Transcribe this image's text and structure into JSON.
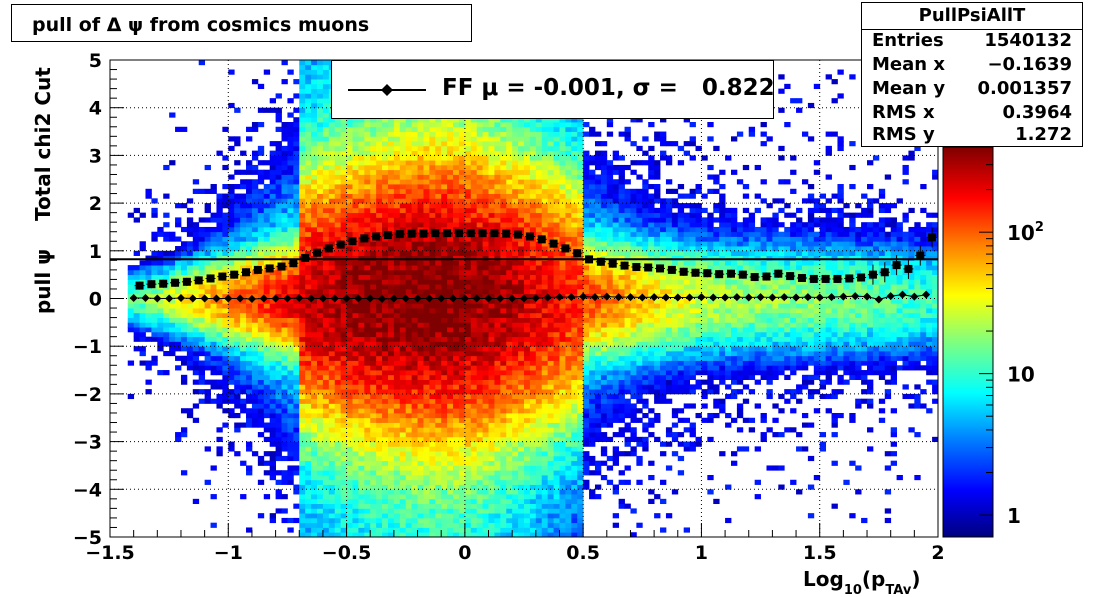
{
  "title": "pull of Δ ψ from cosmics muons",
  "stats": {
    "name": "PullPsiAllT",
    "rows": [
      {
        "label": "Entries",
        "value": "1540132"
      },
      {
        "label": "Mean x",
        "value": "−0.1639"
      },
      {
        "label": "Mean y",
        "value": "0.001357"
      },
      {
        "label": "RMS x",
        "value": "0.3964"
      },
      {
        "label": "RMS y",
        "value": "1.272"
      }
    ]
  },
  "legend": {
    "text": "FF μ = -0.001, σ =   0.822"
  },
  "colors": {
    "palette": [
      "#00007f",
      "#0000ff",
      "#007fff",
      "#00ffff",
      "#7fff7f",
      "#ffff00",
      "#ff7f00",
      "#ff0000",
      "#7f0000"
    ],
    "marker": "#000000"
  },
  "chart_data": {
    "type": "heatmap",
    "title": "pull of Δ ψ from cosmics muons",
    "xlabel": "Log",
    "xlabel_sub": "10",
    "xlabel_paren_open": "(p",
    "xlabel_sub2": "TAv",
    "xlabel_paren_close": ")",
    "ylabel": "pull ψ    Total chi2 Cut",
    "xlim": [
      -1.5,
      2
    ],
    "ylim": [
      -5,
      5
    ],
    "xticks": [
      "−1.5",
      "−1",
      "−0.5",
      "0",
      "0.5",
      "1",
      "1.5",
      "2"
    ],
    "xtick_values": [
      -1.5,
      -1,
      -0.5,
      0,
      0.5,
      1,
      1.5,
      2
    ],
    "yticks": [
      "−5",
      "−4",
      "−3",
      "−2",
      "−1",
      "0",
      "1",
      "2",
      "3",
      "4",
      "5"
    ],
    "ytick_values": [
      -5,
      -4,
      -3,
      -2,
      -1,
      0,
      1,
      2,
      3,
      4,
      5
    ],
    "grid": true,
    "z_log": true,
    "zlim": [
      0.7,
      400
    ],
    "z_ticks": [
      {
        "value": 1,
        "label": "1"
      },
      {
        "value": 10,
        "label": "10"
      },
      {
        "value": 100,
        "label": "10",
        "sup": "2"
      }
    ],
    "fit_line": {
      "name": "FF",
      "y": 0.822
    },
    "mean_profile": {
      "x": [
        -1.4,
        -1.35,
        -1.3,
        -1.25,
        -1.2,
        -1.15,
        -1.1,
        -1.05,
        -1.0,
        -0.95,
        -0.9,
        -0.85,
        -0.8,
        -0.75,
        -0.7,
        -0.65,
        -0.6,
        -0.55,
        -0.5,
        -0.45,
        -0.4,
        -0.35,
        -0.3,
        -0.25,
        -0.2,
        -0.15,
        -0.1,
        -0.05,
        0.0,
        0.05,
        0.1,
        0.15,
        0.2,
        0.25,
        0.3,
        0.35,
        0.4,
        0.45,
        0.5,
        0.55,
        0.6,
        0.65,
        0.7,
        0.75,
        0.8,
        0.85,
        0.9,
        0.95,
        1.0,
        1.05,
        1.1,
        1.15,
        1.2,
        1.25,
        1.3,
        1.35,
        1.4,
        1.45,
        1.5,
        1.55,
        1.6,
        1.65,
        1.7,
        1.75,
        1.8,
        1.85,
        1.9,
        1.95
      ],
      "y": [
        0.01,
        0.01,
        0.0,
        0.0,
        0.01,
        0.0,
        0.0,
        0.0,
        0.0,
        0.0,
        -0.01,
        0.0,
        0.0,
        0.0,
        0.01,
        0.0,
        0.0,
        0.0,
        0.0,
        0.0,
        0.0,
        -0.01,
        0.0,
        0.0,
        0.0,
        0.0,
        0.0,
        0.0,
        0.0,
        0.0,
        0.0,
        0.0,
        0.0,
        0.0,
        0.01,
        0.02,
        0.03,
        0.03,
        0.04,
        0.03,
        0.04,
        0.03,
        0.03,
        0.02,
        0.03,
        0.02,
        0.02,
        0.02,
        0.03,
        0.02,
        0.02,
        0.03,
        0.02,
        0.03,
        0.02,
        0.03,
        0.02,
        0.03,
        0.02,
        0.03,
        0.04,
        0.05,
        0.04,
        -0.02,
        0.05,
        0.08,
        0.04,
        0.08
      ]
    },
    "rms_profile": {
      "x": [
        -1.375,
        -1.325,
        -1.275,
        -1.225,
        -1.175,
        -1.125,
        -1.075,
        -1.025,
        -0.975,
        -0.925,
        -0.875,
        -0.825,
        -0.775,
        -0.725,
        -0.675,
        -0.625,
        -0.575,
        -0.525,
        -0.475,
        -0.425,
        -0.375,
        -0.325,
        -0.275,
        -0.225,
        -0.175,
        -0.125,
        -0.075,
        -0.025,
        0.025,
        0.075,
        0.125,
        0.175,
        0.225,
        0.275,
        0.325,
        0.375,
        0.425,
        0.475,
        0.525,
        0.575,
        0.625,
        0.675,
        0.725,
        0.775,
        0.825,
        0.875,
        0.925,
        0.975,
        1.025,
        1.075,
        1.125,
        1.175,
        1.225,
        1.275,
        1.325,
        1.375,
        1.425,
        1.475,
        1.525,
        1.575,
        1.625,
        1.675,
        1.725,
        1.775,
        1.825,
        1.875,
        1.925,
        1.975
      ],
      "y": [
        0.27,
        0.3,
        0.31,
        0.33,
        0.35,
        0.38,
        0.42,
        0.46,
        0.5,
        0.55,
        0.6,
        0.63,
        0.67,
        0.74,
        0.85,
        0.96,
        1.05,
        1.13,
        1.2,
        1.26,
        1.3,
        1.33,
        1.35,
        1.36,
        1.36,
        1.37,
        1.37,
        1.37,
        1.37,
        1.37,
        1.37,
        1.36,
        1.34,
        1.3,
        1.24,
        1.15,
        1.05,
        0.95,
        0.82,
        0.77,
        0.73,
        0.69,
        0.66,
        0.65,
        0.63,
        0.6,
        0.56,
        0.54,
        0.53,
        0.51,
        0.52,
        0.5,
        0.45,
        0.46,
        0.52,
        0.47,
        0.43,
        0.41,
        0.41,
        0.41,
        0.42,
        0.44,
        0.5,
        0.55,
        0.7,
        0.62,
        0.9,
        1.28
      ]
    }
  }
}
